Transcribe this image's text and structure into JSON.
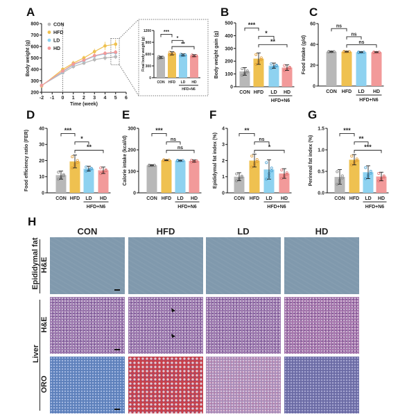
{
  "panel_labels": [
    "A",
    "B",
    "C",
    "D",
    "E",
    "F",
    "G",
    "H"
  ],
  "colors": {
    "CON": "#b8b8b8",
    "HFD": "#efc150",
    "LD": "#8ed2f0",
    "HD": "#f29a9a",
    "dots": {
      "CON": "#888888",
      "HFD": "#e09a30",
      "LD": "#4a9fd0",
      "HD": "#e07070"
    }
  },
  "group_label": "HFD+N6",
  "chart_data": [
    {
      "id": "A",
      "type": "line",
      "xlabel": "Time (week)",
      "ylabel": "Body weight (g)",
      "xticks": [
        -2,
        -1,
        0,
        1,
        2,
        3,
        4,
        5,
        6
      ],
      "xlim": [
        -2,
        6
      ],
      "yticks": [
        200,
        300,
        400,
        500,
        600,
        700,
        800
      ],
      "ylim": [
        200,
        800
      ],
      "x": [
        -2,
        0,
        1,
        2,
        3,
        4,
        5
      ],
      "legend": [
        "CON",
        "HFD",
        "LD",
        "HD"
      ],
      "legend_position": "top-left",
      "series": [
        {
          "name": "CON",
          "values": [
            260,
            370,
            425,
            455,
            485,
            500,
            510
          ],
          "sd": [
            15,
            15,
            20,
            15,
            20,
            20,
            20
          ]
        },
        {
          "name": "HFD",
          "values": [
            255,
            400,
            455,
            500,
            555,
            605,
            620
          ],
          "sd": [
            15,
            15,
            20,
            20,
            25,
            35,
            40
          ]
        },
        {
          "name": "LD",
          "values": [
            260,
            380,
            440,
            475,
            515,
            535,
            545
          ],
          "sd": [
            15,
            15,
            20,
            15,
            20,
            20,
            25
          ]
        },
        {
          "name": "HD",
          "values": [
            260,
            385,
            445,
            480,
            520,
            540,
            550
          ],
          "sd": [
            15,
            15,
            20,
            15,
            20,
            20,
            20
          ]
        }
      ]
    },
    {
      "id": "A-inset",
      "type": "bar",
      "ylabel": "Final body weight (g)",
      "categories": [
        "CON",
        "HFD",
        "LD",
        "HD"
      ],
      "values": [
        520,
        620,
        580,
        560
      ],
      "sd": [
        25,
        40,
        25,
        25
      ],
      "ylim": [
        0,
        1200
      ],
      "yticks": [
        0,
        300,
        600,
        900,
        1200
      ],
      "significance": [
        "***",
        "*",
        "**"
      ]
    },
    {
      "id": "B",
      "type": "bar",
      "ylabel": "Body weight gain (g)",
      "categories": [
        "CON",
        "HFD",
        "LD",
        "HD"
      ],
      "values": [
        120,
        220,
        165,
        150
      ],
      "sd": [
        30,
        45,
        20,
        22
      ],
      "ylim": [
        0,
        500
      ],
      "yticks": [
        0,
        100,
        200,
        300,
        400,
        500
      ],
      "significance": [
        "***",
        "*",
        "**"
      ]
    },
    {
      "id": "C",
      "type": "bar",
      "ylabel": "Food intake (g/d)",
      "categories": [
        "CON",
        "HFD",
        "LD",
        "HD"
      ],
      "values": [
        33,
        33,
        32.5,
        32.5
      ],
      "sd": [
        0.4,
        0.4,
        0.4,
        0.4
      ],
      "ylim": [
        0,
        60
      ],
      "yticks": [
        0,
        20,
        40,
        60
      ],
      "significance": [
        "ns",
        "ns",
        "ns"
      ]
    },
    {
      "id": "D",
      "type": "bar",
      "ylabel": "Food efficiency ratio (FER)",
      "categories": [
        "CON",
        "HFD",
        "LD",
        "HD"
      ],
      "values": [
        11,
        19.5,
        15,
        14
      ],
      "sd": [
        2.5,
        4,
        1.5,
        2
      ],
      "ylim": [
        0,
        40
      ],
      "yticks": [
        0,
        10,
        20,
        30,
        40
      ],
      "significance": [
        "***",
        "*",
        "**"
      ]
    },
    {
      "id": "E",
      "type": "bar",
      "ylabel": "Calorie intake (kcal/d)",
      "categories": [
        "CON",
        "HFD",
        "LD",
        "HD"
      ],
      "values": [
        128,
        152,
        150,
        148
      ],
      "sd": [
        2,
        2,
        2,
        5
      ],
      "ylim": [
        0,
        300
      ],
      "yticks": [
        0,
        100,
        200,
        300
      ],
      "significance": [
        "***",
        "ns",
        "ns"
      ]
    },
    {
      "id": "F",
      "type": "bar",
      "ylabel": "Epididymal fat index (%)",
      "categories": [
        "CON",
        "HFD",
        "LD",
        "HD"
      ],
      "values": [
        1.0,
        2.0,
        1.45,
        1.2
      ],
      "sd": [
        0.25,
        0.4,
        0.6,
        0.3
      ],
      "ylim": [
        0,
        4
      ],
      "yticks": [
        0,
        1,
        2,
        3,
        4
      ],
      "significance": [
        "**",
        "ns",
        "*"
      ]
    },
    {
      "id": "G",
      "type": "bar",
      "ylabel": "Perirenal fat index (%)",
      "categories": [
        "CON",
        "HFD",
        "LD",
        "HD"
      ],
      "values": [
        0.37,
        0.77,
        0.48,
        0.38
      ],
      "sd": [
        0.17,
        0.12,
        0.15,
        0.1
      ],
      "ylim": [
        0,
        1.5
      ],
      "yticks": [
        0.0,
        0.5,
        1.0,
        1.5
      ],
      "significance": [
        "***",
        "**",
        "***"
      ]
    }
  ],
  "histology": {
    "columns": [
      "CON",
      "HFD",
      "LD",
      "HD"
    ],
    "tissue_labels": [
      "Epididymal fat",
      "Liver"
    ],
    "stain_labels": [
      "H&E",
      "H&E",
      "ORO"
    ]
  }
}
